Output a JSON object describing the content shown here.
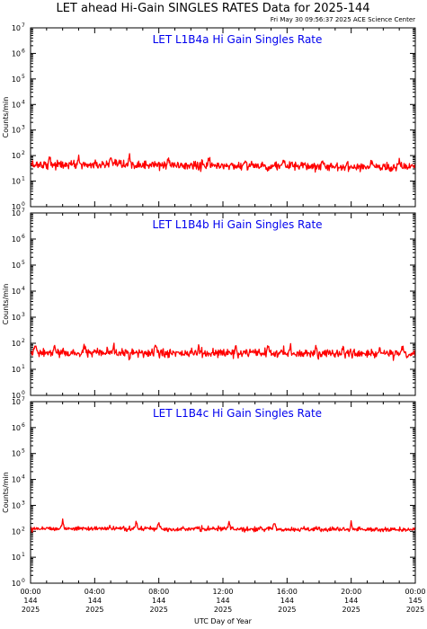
{
  "header": {
    "title": "LET ahead Hi-Gain SINGLES RATES Data for 2025-144",
    "timestamp": "Fri May 30 09:56:37 2025 ACE Science Center"
  },
  "colors": {
    "series": "#ff0000",
    "panel_title": "#0000ee",
    "axes": "#000000"
  },
  "chart_data": [
    {
      "type": "line",
      "title": "LET L1B4a Hi Gain Singles Rate",
      "ylabel": "Counts/min",
      "yscale": "log",
      "ylim": [
        1,
        10000000
      ],
      "yticks": [
        "10^0",
        "10^1",
        "10^2",
        "10^3",
        "10^4",
        "10^5",
        "10^6",
        "10^7"
      ],
      "xlim": [
        0,
        24
      ],
      "x_unit": "hours UTC on day 144",
      "series": [
        {
          "level": 45,
          "noise": 0.14,
          "trend": -0.2,
          "spikes": [
            1.2,
            3.0,
            5.0,
            6.2,
            8.6,
            11.1,
            13.4,
            15.8,
            18.2,
            21.3,
            23.0
          ],
          "values": []
        }
      ]
    },
    {
      "type": "line",
      "title": "LET L1B4b Hi Gain Singles Rate",
      "ylabel": "Counts/min",
      "yscale": "log",
      "ylim": [
        1,
        10000000
      ],
      "yticks": [
        "10^0",
        "10^1",
        "10^2",
        "10^3",
        "10^4",
        "10^5",
        "10^6",
        "10^7"
      ],
      "xlim": [
        0,
        24
      ],
      "x_unit": "hours UTC on day 144",
      "series": [
        {
          "level": 42,
          "noise": 0.13,
          "trend": -0.05,
          "spikes": [
            0.3,
            1.5,
            3.4,
            5.2,
            7.8,
            10.5,
            12.8,
            14.8,
            16.2,
            17.8,
            19.5,
            21.8,
            23.2
          ],
          "values": []
        }
      ]
    },
    {
      "type": "line",
      "title": "LET L1B4c Hi Gain Singles Rate",
      "ylabel": "Counts/min",
      "yscale": "log",
      "ylim": [
        1,
        10000000
      ],
      "yticks": [
        "10^0",
        "10^1",
        "10^2",
        "10^3",
        "10^4",
        "10^5",
        "10^6",
        "10^7"
      ],
      "xlim": [
        0,
        24
      ],
      "x_unit": "hours UTC on day 144",
      "series": [
        {
          "level": 130,
          "noise": 0.07,
          "trend": -0.1,
          "spikes": [
            2.0,
            6.6,
            8.0,
            12.4,
            15.2,
            20.0
          ],
          "values": []
        }
      ]
    }
  ],
  "x_axis": {
    "label": "UTC Day of Year",
    "ticks": [
      {
        "time": "00:00",
        "day": "144",
        "year": "2025"
      },
      {
        "time": "04:00",
        "day": "144",
        "year": "2025"
      },
      {
        "time": "08:00",
        "day": "144",
        "year": "2025"
      },
      {
        "time": "12:00",
        "day": "144",
        "year": "2025"
      },
      {
        "time": "16:00",
        "day": "144",
        "year": "2025"
      },
      {
        "time": "20:00",
        "day": "144",
        "year": "2025"
      },
      {
        "time": "00:00",
        "day": "145",
        "year": "2025"
      }
    ]
  }
}
